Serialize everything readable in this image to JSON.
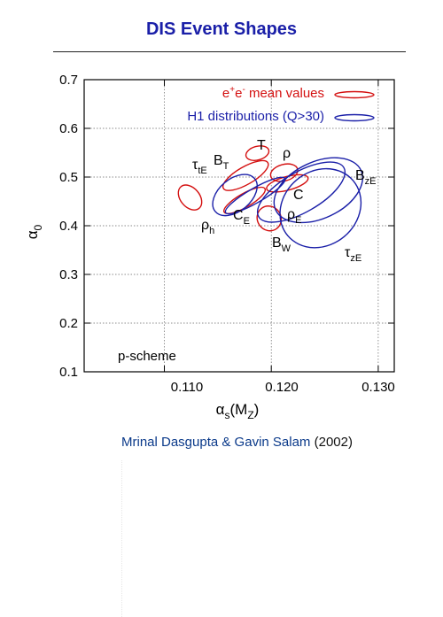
{
  "page": {
    "title": "DIS Event Shapes",
    "credit_names": "Mrinal Dasgupta & Gavin Salam",
    "credit_year": "(2002)"
  },
  "chart_data": {
    "type": "scatter",
    "xlabel": "αs(MZ)",
    "ylabel": "α0",
    "xlim": [
      0.1025,
      0.1315
    ],
    "ylim": [
      0.1,
      0.7
    ],
    "x_ticks": [
      "0.110",
      "0.120",
      "0.130"
    ],
    "y_ticks": [
      "0.1",
      "0.2",
      "0.3",
      "0.4",
      "0.5",
      "0.6",
      "0.7"
    ],
    "grid": true,
    "legend_position": "top-right",
    "annotation": "p-scheme",
    "series": [
      {
        "name": "e+e- mean values",
        "color": "#d41010",
        "ellipses": [
          {
            "label": "T",
            "cx": 0.1187,
            "cy": 0.549,
            "rx": 0.0011,
            "ry": 0.014,
            "angle": -15
          },
          {
            "label": "BT",
            "cx": 0.1176,
            "cy": 0.503,
            "rx": 0.0024,
            "ry": 0.018,
            "angle": -30
          },
          {
            "label": "ρ",
            "cx": 0.1212,
            "cy": 0.509,
            "rx": 0.0013,
            "ry": 0.017,
            "angle": -15
          },
          {
            "label": "C",
            "cx": 0.1215,
            "cy": 0.487,
            "rx": 0.002,
            "ry": 0.014,
            "angle": -15
          },
          {
            "label": "CE",
            "cx": 0.1175,
            "cy": 0.452,
            "rx": 0.0022,
            "ry": 0.014,
            "angle": -30
          },
          {
            "label": "BW",
            "cx": 0.1198,
            "cy": 0.415,
            "rx": 0.0011,
            "ry": 0.026,
            "angle": -35
          },
          {
            "label": "ρh",
            "cx": 0.1124,
            "cy": 0.458,
            "rx": 0.0009,
            "ry": 0.029,
            "angle": -40
          }
        ]
      },
      {
        "name": "H1 distributions (Q>30)",
        "color": "#1a1fa8",
        "ellipses": [
          {
            "label": "τtE",
            "cx": 0.1166,
            "cy": 0.463,
            "rx": 0.0024,
            "ry": 0.033,
            "angle": -40
          },
          {
            "label": "CE",
            "cx": 0.1185,
            "cy": 0.462,
            "rx": 0.0032,
            "ry": 0.015,
            "angle": -30
          },
          {
            "label": "ρE",
            "cx": 0.1228,
            "cy": 0.469,
            "rx": 0.0046,
            "ry": 0.041,
            "angle": -30
          },
          {
            "label": "BzE",
            "cx": 0.1244,
            "cy": 0.473,
            "rx": 0.0044,
            "ry": 0.058,
            "angle": -25
          },
          {
            "label": "τzE",
            "cx": 0.1246,
            "cy": 0.436,
            "rx": 0.004,
            "ry": 0.076,
            "angle": -40
          }
        ]
      }
    ],
    "point_labels": {
      "T": "T",
      "BT_base": "B",
      "BT_sub": "T",
      "rho": "ρ",
      "C": "C",
      "CE_base": "C",
      "CE_sub": "E",
      "rhoE_base": "ρ",
      "rhoE_sub": "E",
      "BW_base": "B",
      "BW_sub": "W",
      "rhoh_base": "ρ",
      "rhoh_sub": "h",
      "tautE_base": "τ",
      "tautE_sub": "tE",
      "BzE_base": "B",
      "BzE_sub": "zE",
      "tauzE_base": "τ",
      "tauzE_sub": "zE"
    }
  }
}
